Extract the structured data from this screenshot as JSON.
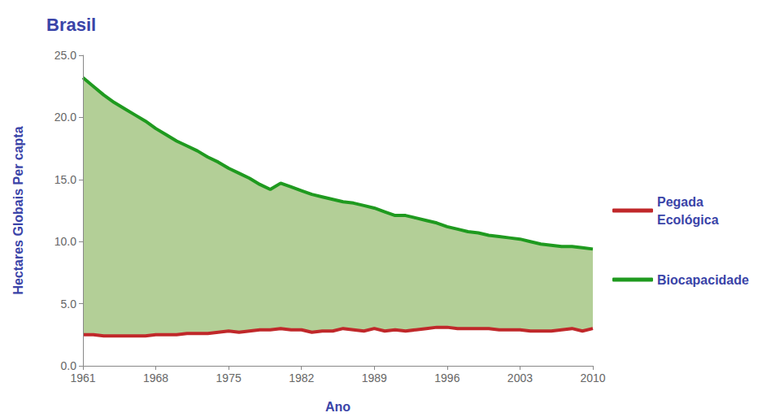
{
  "chart_data": {
    "type": "area",
    "title": "Brasil",
    "x_label": "Ano",
    "y_label": "Hectares Globais Per capta",
    "x": [
      1961,
      1962,
      1963,
      1964,
      1965,
      1966,
      1967,
      1968,
      1969,
      1970,
      1971,
      1972,
      1973,
      1974,
      1975,
      1976,
      1977,
      1978,
      1979,
      1980,
      1981,
      1982,
      1983,
      1984,
      1985,
      1986,
      1987,
      1988,
      1989,
      1990,
      1991,
      1992,
      1993,
      1994,
      1995,
      1996,
      1997,
      1998,
      1999,
      2000,
      2001,
      2002,
      2003,
      2004,
      2005,
      2006,
      2007,
      2008,
      2009,
      2010
    ],
    "series": [
      {
        "name": "Pegada Ecológica",
        "color": "#c0282a",
        "values": [
          2.5,
          2.5,
          2.4,
          2.4,
          2.4,
          2.4,
          2.4,
          2.5,
          2.5,
          2.5,
          2.6,
          2.6,
          2.6,
          2.7,
          2.8,
          2.7,
          2.8,
          2.9,
          2.9,
          3.0,
          2.9,
          2.9,
          2.7,
          2.8,
          2.8,
          3.0,
          2.9,
          2.8,
          3.0,
          2.8,
          2.9,
          2.8,
          2.9,
          3.0,
          3.1,
          3.1,
          3.0,
          3.0,
          3.0,
          3.0,
          2.9,
          2.9,
          2.9,
          2.8,
          2.8,
          2.8,
          2.9,
          3.0,
          2.8,
          3.0
        ]
      },
      {
        "name": "Biocapacidade",
        "color": "#1f9a1f",
        "values": [
          23.2,
          22.5,
          21.8,
          21.2,
          20.7,
          20.2,
          19.7,
          19.1,
          18.6,
          18.1,
          17.7,
          17.3,
          16.8,
          16.4,
          15.9,
          15.5,
          15.1,
          14.6,
          14.2,
          14.7,
          14.4,
          14.1,
          13.8,
          13.6,
          13.4,
          13.2,
          13.1,
          12.9,
          12.7,
          12.4,
          12.1,
          12.1,
          11.9,
          11.7,
          11.5,
          11.2,
          11.0,
          10.8,
          10.7,
          10.5,
          10.4,
          10.3,
          10.2,
          10.0,
          9.8,
          9.7,
          9.6,
          9.6,
          9.5,
          9.4
        ]
      }
    ],
    "fill_color": "#b3cf97",
    "xlim": [
      1961,
      2010
    ],
    "xticks": [
      1961,
      1968,
      1975,
      1982,
      1989,
      1996,
      2003,
      2010
    ],
    "ylim": [
      0,
      25
    ],
    "yticks": [
      {
        "value": 0,
        "label": "0.0"
      },
      {
        "value": 5,
        "label": "5.0"
      },
      {
        "value": 10,
        "label": "10.0"
      },
      {
        "value": 15,
        "label": "15.0"
      },
      {
        "value": 20,
        "label": "20.0"
      },
      {
        "value": 25,
        "label": "25.0"
      }
    ],
    "grid": false,
    "legend": "right"
  }
}
